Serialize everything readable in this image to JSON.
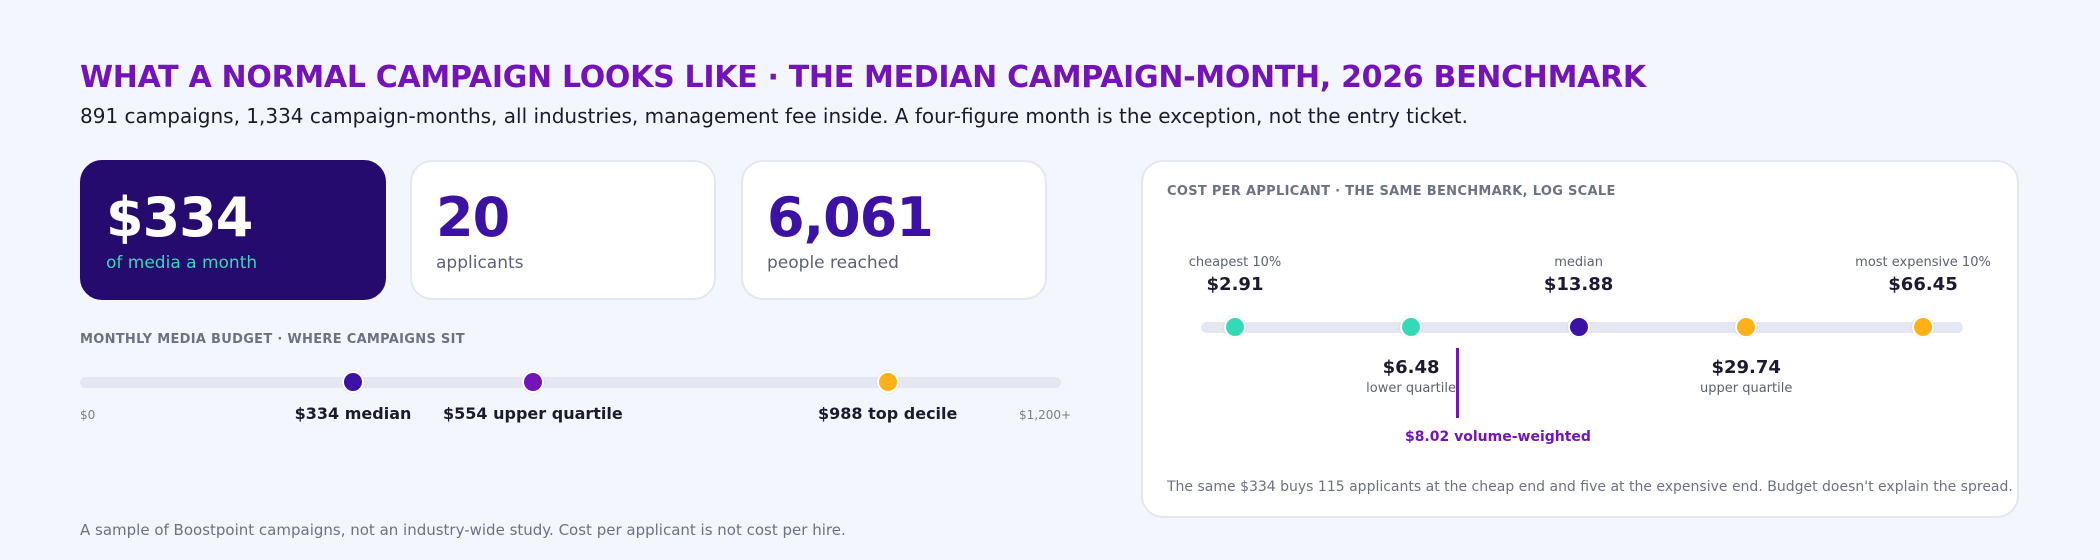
{
  "header": {
    "title": "WHAT A NORMAL CAMPAIGN LOOKS LIKE · THE MEDIAN CAMPAIGN-MONTH, 2026 BENCHMARK",
    "subtitle": "891 campaigns, 1,334 campaign-months, all industries, management fee inside. A four-figure month is the exception, not the entry ticket."
  },
  "cards": [
    {
      "value": "$334",
      "label": "of media a month"
    },
    {
      "value": "20",
      "label": "applicants"
    },
    {
      "value": "6,061",
      "label": "people reached"
    }
  ],
  "colors": {
    "purple_dark": "#250b6e",
    "indigo": "#3c12a4",
    "violet": "#7414b8",
    "teal": "#36d9b6",
    "amber": "#fbb117"
  },
  "footnote": "A sample of Boostpoint campaigns, not an industry-wide study. Cost per applicant is not cost per hire.",
  "chart_data": [
    {
      "type": "scatter",
      "title": "MONTHLY MEDIA BUDGET · WHERE CAMPAIGNS SIT",
      "axis": {
        "min_label": "$0",
        "max_label": "$1,200+",
        "xlim": [
          0,
          1200
        ],
        "scale": "linear"
      },
      "points": [
        {
          "value": 334,
          "label": "$334 median",
          "color": "#3c12a4"
        },
        {
          "value": 554,
          "label": "$554 upper quartile",
          "color": "#7414b8"
        },
        {
          "value": 988,
          "label": "$988 top decile",
          "color": "#fbb117"
        }
      ]
    },
    {
      "type": "scatter",
      "title": "COST PER APPLICANT · THE SAME BENCHMARK, LOG SCALE",
      "axis": {
        "scale": "log"
      },
      "points": [
        {
          "value": 2.91,
          "text": "$2.91",
          "caption": "cheapest 10%",
          "position": "above",
          "color": "#36d9b6"
        },
        {
          "value": 6.48,
          "text": "$6.48",
          "caption": "lower quartile",
          "position": "below",
          "color": "#36d9b6"
        },
        {
          "value": 13.88,
          "text": "$13.88",
          "caption": "median",
          "position": "above",
          "color": "#3c12a4"
        },
        {
          "value": 29.74,
          "text": "$29.74",
          "caption": "upper quartile",
          "position": "below",
          "color": "#fbb117"
        },
        {
          "value": 66.45,
          "text": "$66.45",
          "caption": "most expensive 10%",
          "position": "above",
          "color": "#fbb117"
        }
      ],
      "marker": {
        "value": 8.02,
        "label": "$8.02 volume-weighted",
        "color": "#7414b8"
      },
      "note": "The same $334 buys 115 applicants at the cheap end and five at the expensive end. Budget doesn't explain the spread."
    }
  ]
}
